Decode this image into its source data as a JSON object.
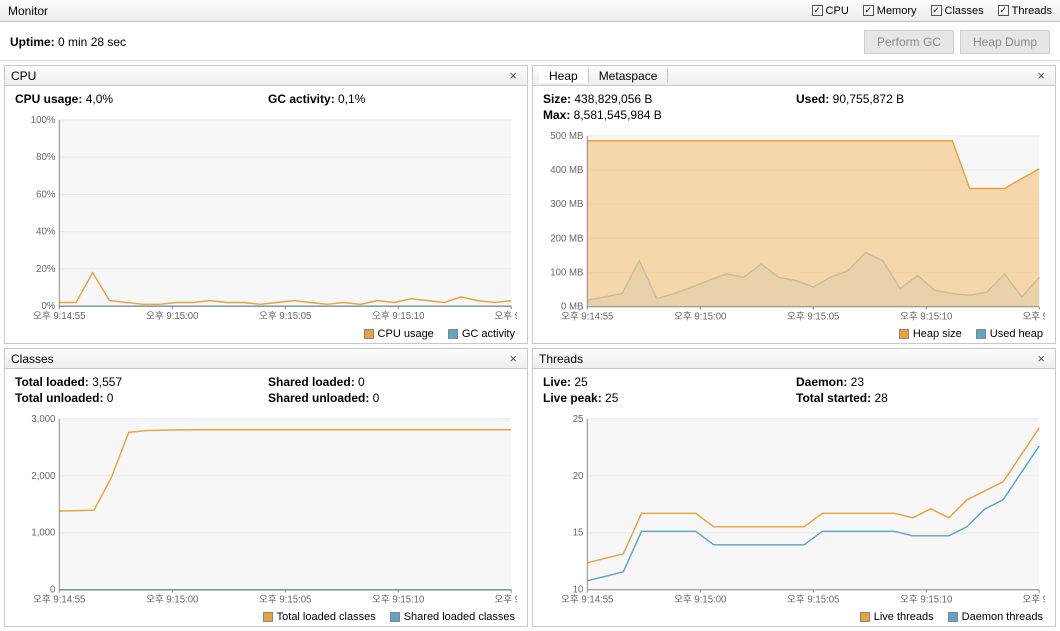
{
  "title": "Monitor",
  "checks": [
    {
      "label": "CPU",
      "checked": true
    },
    {
      "label": "Memory",
      "checked": true
    },
    {
      "label": "Classes",
      "checked": true
    },
    {
      "label": "Threads",
      "checked": true
    }
  ],
  "uptime_label": "Uptime:",
  "uptime_value": "0 min 28 sec",
  "buttons": {
    "gc": "Perform GC",
    "dump": "Heap Dump"
  },
  "colors": {
    "orange": "#e8a33d",
    "orange_fill": "#f4c98a",
    "blue": "#5aa6c4",
    "blue_fill": "#bfe0ed",
    "grid": "#e8e8e8",
    "axis": "#888888",
    "plotbg": "#f7f7f7"
  },
  "xticks": [
    "오후 9:14:55",
    "오후 9:15:00",
    "오후 9:15:05",
    "오후 9:15:10",
    "오후 9:1"
  ],
  "cpu": {
    "title": "CPU",
    "stats": [
      [
        {
          "k": "CPU usage:",
          "v": "4,0%"
        }
      ],
      [
        {
          "k": "GC activity:",
          "v": "0,1%"
        }
      ]
    ],
    "yticks": [
      "0%",
      "20%",
      "40%",
      "60%",
      "80%",
      "100%"
    ],
    "ymax": 100,
    "legend": [
      {
        "label": "CPU usage",
        "color": "#e8a33d"
      },
      {
        "label": "GC activity",
        "color": "#5aa6c4"
      }
    ],
    "series": [
      {
        "color": "#e8a33d",
        "fill": "",
        "data": [
          2,
          2,
          18,
          3,
          2,
          1,
          1,
          2,
          2,
          3,
          2,
          2,
          1,
          2,
          3,
          2,
          1,
          2,
          1,
          3,
          2,
          4,
          3,
          2,
          5,
          3,
          2,
          3
        ]
      },
      {
        "color": "#5aa6c4",
        "fill": "",
        "data": [
          0,
          0,
          0,
          0,
          0,
          0,
          0,
          0,
          0,
          0,
          0,
          0,
          0,
          0,
          0,
          0,
          0,
          0,
          0,
          0,
          0,
          0,
          0,
          0,
          0,
          0,
          0,
          0
        ]
      }
    ]
  },
  "heap": {
    "tabs": [
      "Heap",
      "Metaspace"
    ],
    "active_tab": 0,
    "stats": [
      [
        {
          "k": "Size:",
          "v": "438,829,056 B"
        },
        {
          "k": "Max:",
          "v": "8,581,545,984 B"
        }
      ],
      [
        {
          "k": "Used:",
          "v": "90,755,872 B"
        }
      ]
    ],
    "yticks": [
      "0 MB",
      "100 MB",
      "200 MB",
      "300 MB",
      "400 MB",
      "500 MB"
    ],
    "ymax": 520,
    "legend": [
      {
        "label": "Heap size",
        "color": "#e8a33d"
      },
      {
        "label": "Used heap",
        "color": "#5aa6c4"
      }
    ],
    "series": [
      {
        "color": "#e8a33d",
        "fill": "#f4c98a",
        "data": [
          505,
          505,
          505,
          505,
          505,
          505,
          505,
          505,
          505,
          505,
          505,
          505,
          505,
          505,
          505,
          505,
          505,
          505,
          505,
          505,
          505,
          505,
          360,
          360,
          360,
          390,
          420
        ]
      },
      {
        "color": "#5aa6c4",
        "fill": "#bfe0ed",
        "data": [
          20,
          30,
          40,
          140,
          25,
          40,
          60,
          80,
          100,
          90,
          130,
          90,
          80,
          60,
          90,
          110,
          165,
          140,
          55,
          95,
          50,
          40,
          35,
          45,
          100,
          30,
          90
        ]
      }
    ]
  },
  "classes": {
    "title": "Classes",
    "stats": [
      [
        {
          "k": "Total loaded:",
          "v": "3,557"
        },
        {
          "k": "Total unloaded:",
          "v": "0"
        }
      ],
      [
        {
          "k": "Shared loaded:",
          "v": "0"
        },
        {
          "k": "Shared unloaded:",
          "v": "0"
        }
      ]
    ],
    "yticks": [
      "0",
      "1,000",
      "2,000",
      "3,000"
    ],
    "ymax": 3800,
    "legend": [
      {
        "label": "Total loaded classes",
        "color": "#e8a33d"
      },
      {
        "label": "Shared loaded classes",
        "color": "#5aa6c4"
      }
    ],
    "series": [
      {
        "color": "#e8a33d",
        "fill": "",
        "data": [
          1750,
          1760,
          1770,
          2500,
          3500,
          3540,
          3550,
          3555,
          3557,
          3557,
          3557,
          3557,
          3557,
          3557,
          3557,
          3557,
          3557,
          3557,
          3557,
          3557,
          3557,
          3557,
          3557,
          3557,
          3557,
          3557,
          3557
        ]
      },
      {
        "color": "#5aa6c4",
        "fill": "",
        "data": [
          0,
          0,
          0,
          0,
          0,
          0,
          0,
          0,
          0,
          0,
          0,
          0,
          0,
          0,
          0,
          0,
          0,
          0,
          0,
          0,
          0,
          0,
          0,
          0,
          0,
          0,
          0
        ]
      }
    ]
  },
  "threads": {
    "title": "Threads",
    "stats": [
      [
        {
          "k": "Live:",
          "v": "25"
        },
        {
          "k": "Live peak:",
          "v": "25"
        }
      ],
      [
        {
          "k": "Daemon:",
          "v": "23"
        },
        {
          "k": "Total started:",
          "v": "28"
        }
      ]
    ],
    "yticks": [
      "10",
      "15",
      "20",
      "25"
    ],
    "ymin": 7,
    "ymax": 26,
    "legend": [
      {
        "label": "Live threads",
        "color": "#e8a33d"
      },
      {
        "label": "Daemon threads",
        "color": "#5aa6c4"
      }
    ],
    "series": [
      {
        "color": "#e8a33d",
        "fill": "",
        "data": [
          10,
          10.5,
          11,
          15.5,
          15.5,
          15.5,
          15.5,
          14,
          14,
          14,
          14,
          14,
          14,
          15.5,
          15.5,
          15.5,
          15.5,
          15.5,
          15,
          16,
          15,
          17,
          18,
          19,
          22,
          25
        ]
      },
      {
        "color": "#5aa6c4",
        "fill": "",
        "data": [
          8,
          8.5,
          9,
          13.5,
          13.5,
          13.5,
          13.5,
          12,
          12,
          12,
          12,
          12,
          12,
          13.5,
          13.5,
          13.5,
          13.5,
          13.5,
          13,
          13,
          13,
          14,
          16,
          17,
          20,
          23
        ]
      }
    ]
  }
}
